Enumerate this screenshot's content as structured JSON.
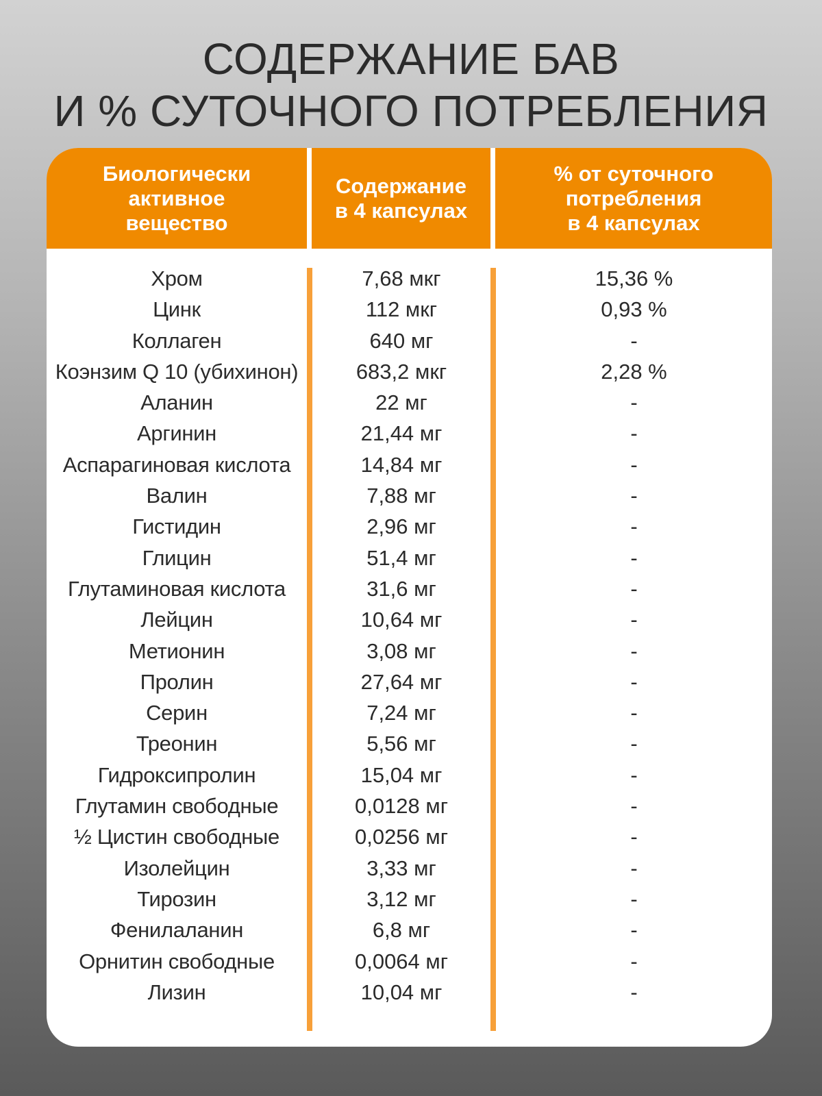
{
  "title": {
    "line1": "СОДЕРЖАНИЕ БАВ",
    "line2": "И % СУТОЧНОГО ПОТРЕБЛЕНИЯ"
  },
  "table": {
    "headers": [
      "Биологически\nактивное\nвещество",
      "Содержание\nв 4 капсулах",
      "% от суточного\nпотребления\nв 4 капсулах"
    ],
    "rows": [
      [
        "Хром",
        "7,68 мкг",
        "15,36 %"
      ],
      [
        "Цинк",
        "112 мкг",
        "0,93 %"
      ],
      [
        "Коллаген",
        "640 мг",
        "-"
      ],
      [
        "Коэнзим Q 10 (убихинон)",
        "683,2 мкг",
        "2,28 %"
      ],
      [
        "Аланин",
        "22 мг",
        "-"
      ],
      [
        "Аргинин",
        "21,44 мг",
        "-"
      ],
      [
        "Аспарагиновая кислота",
        "14,84 мг",
        "-"
      ],
      [
        "Валин",
        "7,88 мг",
        "-"
      ],
      [
        "Гистидин",
        "2,96 мг",
        "-"
      ],
      [
        "Глицин",
        "51,4 мг",
        "-"
      ],
      [
        "Глутаминовая кислота",
        "31,6 мг",
        "-"
      ],
      [
        "Лейцин",
        "10,64 мг",
        "-"
      ],
      [
        "Метионин",
        "3,08 мг",
        "-"
      ],
      [
        "Пролин",
        "27,64 мг",
        "-"
      ],
      [
        "Серин",
        "7,24 мг",
        "-"
      ],
      [
        "Треонин",
        "5,56 мг",
        "-"
      ],
      [
        "Гидроксипролин",
        "15,04 мг",
        "-"
      ],
      [
        "Глутамин свободные",
        "0,0128 мг",
        "-"
      ],
      [
        "½ Цистин свободные",
        "0,0256 мг",
        "-"
      ],
      [
        "Изолейцин",
        "3,33 мг",
        "-"
      ],
      [
        "Тирозин",
        "3,12 мг",
        "-"
      ],
      [
        "Фенилаланин",
        "6,8 мг",
        "-"
      ],
      [
        "Орнитин свободные",
        "0,0064 мг",
        "-"
      ],
      [
        "Лизин",
        "10,04 мг",
        "-"
      ]
    ]
  },
  "colors": {
    "accent": "#f08a00",
    "divider": "#f7a039",
    "text": "#2b2b2b",
    "header_text": "#ffffff",
    "card": "#ffffff"
  }
}
